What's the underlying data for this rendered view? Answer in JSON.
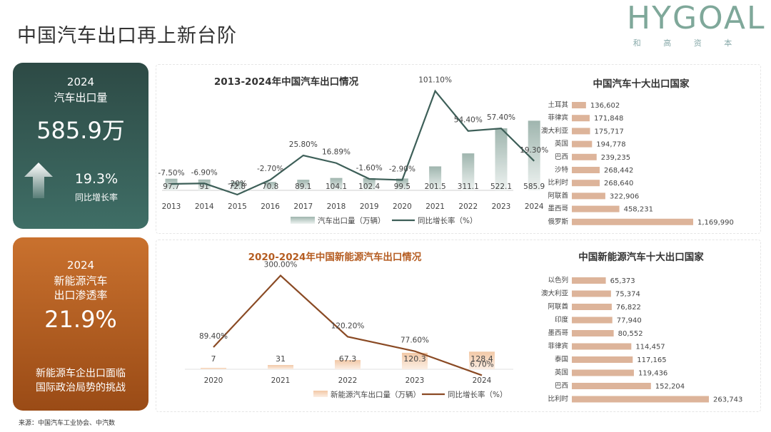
{
  "page_title": "中国汽车出口再上新台阶",
  "logo": {
    "text": "HYGOAL",
    "subtitle": "和 高 资 本"
  },
  "card_export": {
    "year": "2024",
    "label": "汽车出口量",
    "value": "585.9万",
    "growth": "19.3%",
    "growth_label": "同比增长率"
  },
  "card_nev": {
    "year": "2024",
    "label_line1": "新能源汽车",
    "label_line2": "出口渗透率",
    "value": "21.9%",
    "note_line1": "新能源车企出口面临",
    "note_line2": "国际政治局势的挑战"
  },
  "source": "来源：中国汽车工业协会、中汽数",
  "colors": {
    "green_dark": "#2d4a45",
    "line_green": "#3d5f58",
    "orange": "#c9712e",
    "line_brown": "#8a4a24",
    "bar_tan": "#ddb49a",
    "bar_nev": "#f3d7c0"
  },
  "chart_data": [
    {
      "type": "bar",
      "title": "2013-2024年中国汽车出口情况",
      "categories": [
        "2013",
        "2014",
        "2015",
        "2016",
        "2017",
        "2018",
        "2019",
        "2020",
        "2021",
        "2022",
        "2023",
        "2024"
      ],
      "series": [
        {
          "name": "汽车出口量（万辆）",
          "values": [
            97.7,
            91,
            72.8,
            70.8,
            89.1,
            104.1,
            102.4,
            99.5,
            201.5,
            311.1,
            522.1,
            585.9
          ],
          "labels": [
            "97.7",
            "91",
            "72.8",
            "70.8",
            "89.1",
            "104.1",
            "102.4",
            "99.5",
            "201.5",
            "311.1",
            "522.1",
            "585.9"
          ]
        },
        {
          "name": "同比增长率（%）",
          "type": "line",
          "values": [
            -7.5,
            -6.9,
            -20,
            -2.7,
            25.8,
            16.89,
            -1.6,
            -2.9,
            101.1,
            54.4,
            57.4,
            19.3
          ],
          "labels": [
            "-7.50%",
            "-6.90%",
            "-20%",
            "-2.70%",
            "25.80%",
            "16.89%",
            "-1.60%",
            "-2.90%",
            "101.10%",
            "54.40%",
            "57.40%",
            "19.30%"
          ]
        }
      ],
      "legend": "bottom"
    },
    {
      "type": "bar",
      "title": "中国汽车十大出口国家",
      "orientation": "horizontal",
      "categories": [
        "土耳其",
        "菲律宾",
        "澳大利亚",
        "英国",
        "巴西",
        "沙特",
        "比利时",
        "阿联酋",
        "墨西哥",
        "俄罗斯"
      ],
      "values": [
        136602,
        171848,
        175717,
        194778,
        239235,
        268442,
        268640,
        322906,
        458231,
        1169990
      ],
      "labels": [
        "136,602",
        "171,848",
        "175,717",
        "194,778",
        "239,235",
        "268,442",
        "268,640",
        "322,906",
        "458,231",
        "1,169,990"
      ]
    },
    {
      "type": "bar",
      "title": "2020-2024年中国新能源汽车出口情况",
      "categories": [
        "2020",
        "2021",
        "2022",
        "2023",
        "2024"
      ],
      "series": [
        {
          "name": "新能源汽车出口量（万辆）",
          "values": [
            7,
            31,
            67.3,
            120.3,
            128.4
          ],
          "labels": [
            "7",
            "31",
            "67.3",
            "120.3",
            "128.4"
          ]
        },
        {
          "name": "同比增长率（%）",
          "type": "line",
          "values": [
            89.4,
            300,
            120.2,
            77.6,
            6.7
          ],
          "labels": [
            "89.40%",
            "300.00%",
            "120.20%",
            "77.60%",
            "6.70%"
          ]
        }
      ],
      "legend": "bottom"
    },
    {
      "type": "bar",
      "title": "中国新能源汽车十大出口国家",
      "orientation": "horizontal",
      "categories": [
        "以色列",
        "澳大利亚",
        "阿联酋",
        "印度",
        "墨西哥",
        "菲律宾",
        "泰国",
        "英国",
        "巴西",
        "比利时"
      ],
      "values": [
        65373,
        75374,
        76822,
        77940,
        80552,
        114457,
        117165,
        119436,
        152204,
        263743
      ],
      "labels": [
        "65,373",
        "75,374",
        "76,822",
        "77,940",
        "80,552",
        "114,457",
        "117,165",
        "119,436",
        "152,204",
        "263,743"
      ]
    }
  ]
}
